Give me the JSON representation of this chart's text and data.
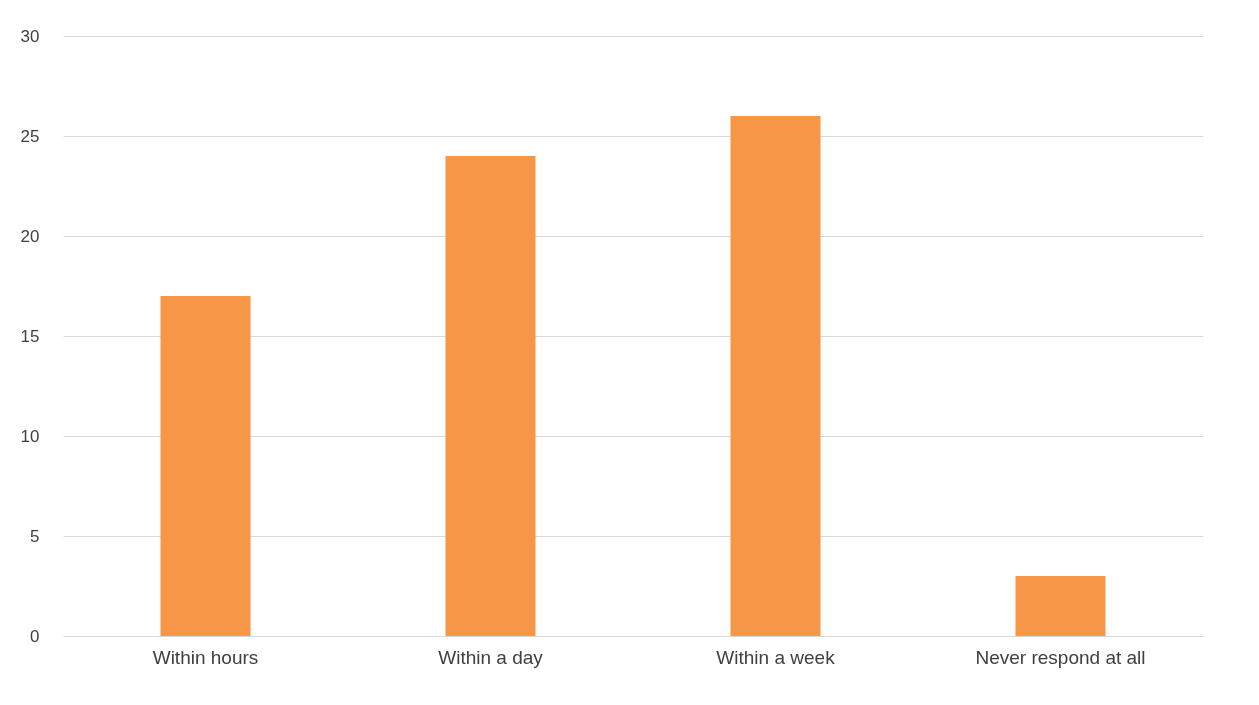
{
  "chart_data": {
    "type": "bar",
    "categories": [
      "Within hours",
      "Within a day",
      "Within a week",
      "Never respond at all"
    ],
    "values": [
      17,
      24,
      26,
      3
    ],
    "color": "#f79646",
    "ylim": [
      0,
      30
    ],
    "yticks": [
      0,
      5,
      10,
      15,
      20,
      25,
      30
    ],
    "grid": "y"
  }
}
